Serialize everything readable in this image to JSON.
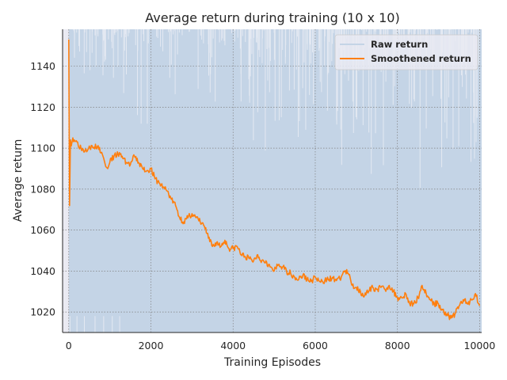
{
  "chart_data": {
    "type": "line",
    "title": "Average return during training (10 x 10)",
    "xlabel": "Training Episodes",
    "ylabel": "Average return",
    "xlim": [
      -150,
      10050
    ],
    "ylim": [
      1010,
      1158
    ],
    "xticks": [
      0,
      2000,
      4000,
      6000,
      8000,
      10000
    ],
    "yticks": [
      1020,
      1040,
      1060,
      1080,
      1100,
      1120,
      1140
    ],
    "grid": true,
    "legend_position": "top-right",
    "series": [
      {
        "name": "Raw return",
        "style": "dense-area",
        "color": "#c4d4e6",
        "envelope": {
          "x": [
            0,
            200,
            400,
            800,
            1200,
            1600,
            2000,
            3000,
            4000,
            5000,
            6000,
            7000,
            8000,
            9000,
            10000
          ],
          "y_high_typical": [
            1158,
            1158,
            1158,
            1158,
            1158,
            1158,
            1158,
            1158,
            1158,
            1158,
            1158,
            1158,
            1158,
            1158,
            1158
          ],
          "y_low_typical": [
            1010,
            1010,
            1010,
            1010,
            1010,
            1010,
            1010,
            1010,
            1010,
            1010,
            1010,
            1010,
            1010,
            1010,
            1010
          ]
        }
      },
      {
        "name": "Smoothened return",
        "style": "line",
        "color": "#ff7f0e",
        "x": [
          0,
          20,
          40,
          60,
          100,
          200,
          300,
          400,
          500,
          600,
          700,
          800,
          850,
          900,
          950,
          1000,
          1100,
          1200,
          1300,
          1400,
          1500,
          1600,
          1700,
          1800,
          1900,
          2000,
          2100,
          2200,
          2300,
          2400,
          2500,
          2600,
          2700,
          2800,
          2900,
          3000,
          3100,
          3200,
          3300,
          3400,
          3500,
          3600,
          3700,
          3800,
          3900,
          4000,
          4100,
          4200,
          4300,
          4400,
          4500,
          4600,
          4700,
          4800,
          4900,
          5000,
          5100,
          5200,
          5300,
          5400,
          5500,
          5600,
          5700,
          5800,
          5900,
          6000,
          6100,
          6200,
          6300,
          6400,
          6500,
          6600,
          6700,
          6800,
          6900,
          7000,
          7100,
          7200,
          7300,
          7400,
          7500,
          7600,
          7700,
          7800,
          7900,
          8000,
          8100,
          8200,
          8300,
          8400,
          8500,
          8600,
          8700,
          8800,
          8900,
          9000,
          9100,
          9200,
          9300,
          9400,
          9500,
          9600,
          9700,
          9800,
          9900,
          10000
        ],
        "y": [
          1153,
          1072,
          1104,
          1101,
          1105,
          1103,
          1100,
          1099,
          1101,
          1100,
          1101,
          1098,
          1095,
          1091,
          1090,
          1093,
          1096,
          1097,
          1096,
          1093,
          1092,
          1096,
          1093,
          1090,
          1089,
          1090,
          1085,
          1083,
          1081,
          1079,
          1075,
          1072,
          1066,
          1064,
          1066,
          1068,
          1066,
          1064,
          1062,
          1056,
          1052,
          1054,
          1052,
          1055,
          1051,
          1051,
          1052,
          1048,
          1047,
          1046,
          1045,
          1048,
          1045,
          1045,
          1042,
          1040,
          1043,
          1042,
          1040,
          1039,
          1037,
          1036,
          1038,
          1036,
          1035,
          1037,
          1035,
          1034,
          1037,
          1036,
          1036,
          1036,
          1040,
          1039,
          1033,
          1032,
          1030,
          1028,
          1030,
          1032,
          1031,
          1032,
          1031,
          1033,
          1030,
          1027,
          1027,
          1029,
          1024,
          1024,
          1027,
          1033,
          1029,
          1026,
          1024,
          1024,
          1021,
          1019,
          1017,
          1019,
          1023,
          1026,
          1024,
          1026,
          1029,
          1023
        ]
      }
    ]
  }
}
